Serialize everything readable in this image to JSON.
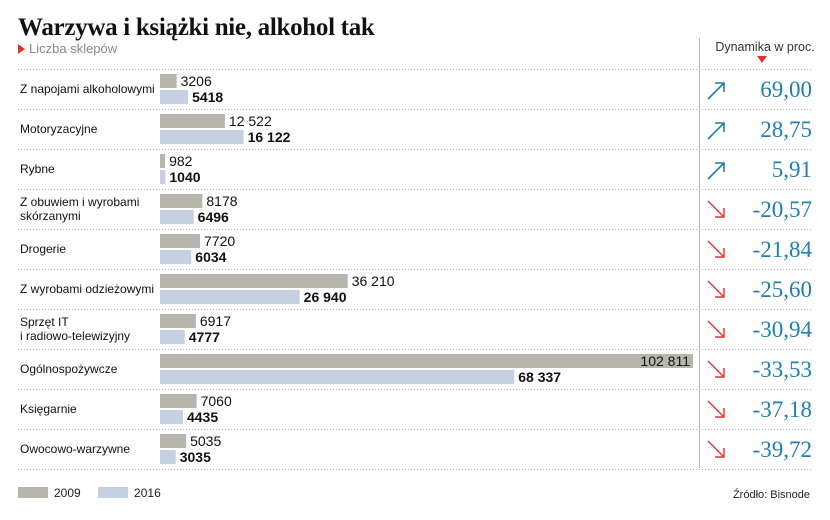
{
  "header": {
    "title": "Warzywa i książki nie, alkohol tak",
    "subtitle": "Liczba sklepów",
    "dynamics_label": "Dynamika w proc."
  },
  "legend": {
    "items": [
      {
        "label": "2009",
        "color": "#b7b6ad"
      },
      {
        "label": "2016",
        "color": "#c6d0e3"
      }
    ]
  },
  "source": "Źródło: Bisnode",
  "colors": {
    "bar_2009": "#b7b6ad",
    "bar_2016": "#c6d0e3",
    "up_arrow": "#1f7fb0",
    "down_arrow": "#e4322b",
    "dynamics_text": "#1f7fb0",
    "separator": "#b0b0b0"
  },
  "chart_data": {
    "type": "bar",
    "title": "Warzywa i książki nie, alkohol tak",
    "subtitle": "Liczba sklepów",
    "categories": [
      [
        "Z napojami alkoholowymi"
      ],
      [
        "Motoryzacyjne"
      ],
      [
        "Rybne"
      ],
      [
        "Z obuwiem i wyrobami",
        "skórzanymi"
      ],
      [
        "Drogerie"
      ],
      [
        "Z wyrobami odzieżowymi"
      ],
      [
        "Sprzęt IT",
        "i radiowo-telewizyjny"
      ],
      [
        "Ogólnospożywcze"
      ],
      [
        "Księgarnie"
      ],
      [
        "Owocowo-warzywne"
      ]
    ],
    "series": [
      {
        "name": "2009",
        "values": [
          3206,
          12522,
          982,
          8178,
          7720,
          36210,
          6917,
          102811,
          7060,
          5035
        ],
        "labels": [
          "3206",
          "12 522",
          "982",
          "8178",
          "7720",
          "36 210",
          "6917",
          "102 811",
          "7060",
          "5035"
        ]
      },
      {
        "name": "2016",
        "values": [
          5418,
          16122,
          1040,
          6496,
          6034,
          26940,
          4777,
          68337,
          4435,
          3035
        ],
        "labels": [
          "5418",
          "16 122",
          "1040",
          "6496",
          "6034",
          "26 940",
          "4777",
          "68 337",
          "4435",
          "3035"
        ]
      }
    ],
    "dynamics": {
      "label": "Dynamika w proc.",
      "values": [
        69.0,
        28.75,
        5.91,
        -20.57,
        -21.84,
        -25.6,
        -30.94,
        -33.53,
        -37.18,
        -39.72
      ],
      "labels": [
        "69,00",
        "28,75",
        "5,91",
        "-20,57",
        "-21,84",
        "-25,60",
        "-30,94",
        "-33,53",
        "-37,18",
        "-39,72"
      ]
    },
    "xlim": [
      0,
      102811
    ],
    "grid": false,
    "legend_position": "bottom-left"
  }
}
